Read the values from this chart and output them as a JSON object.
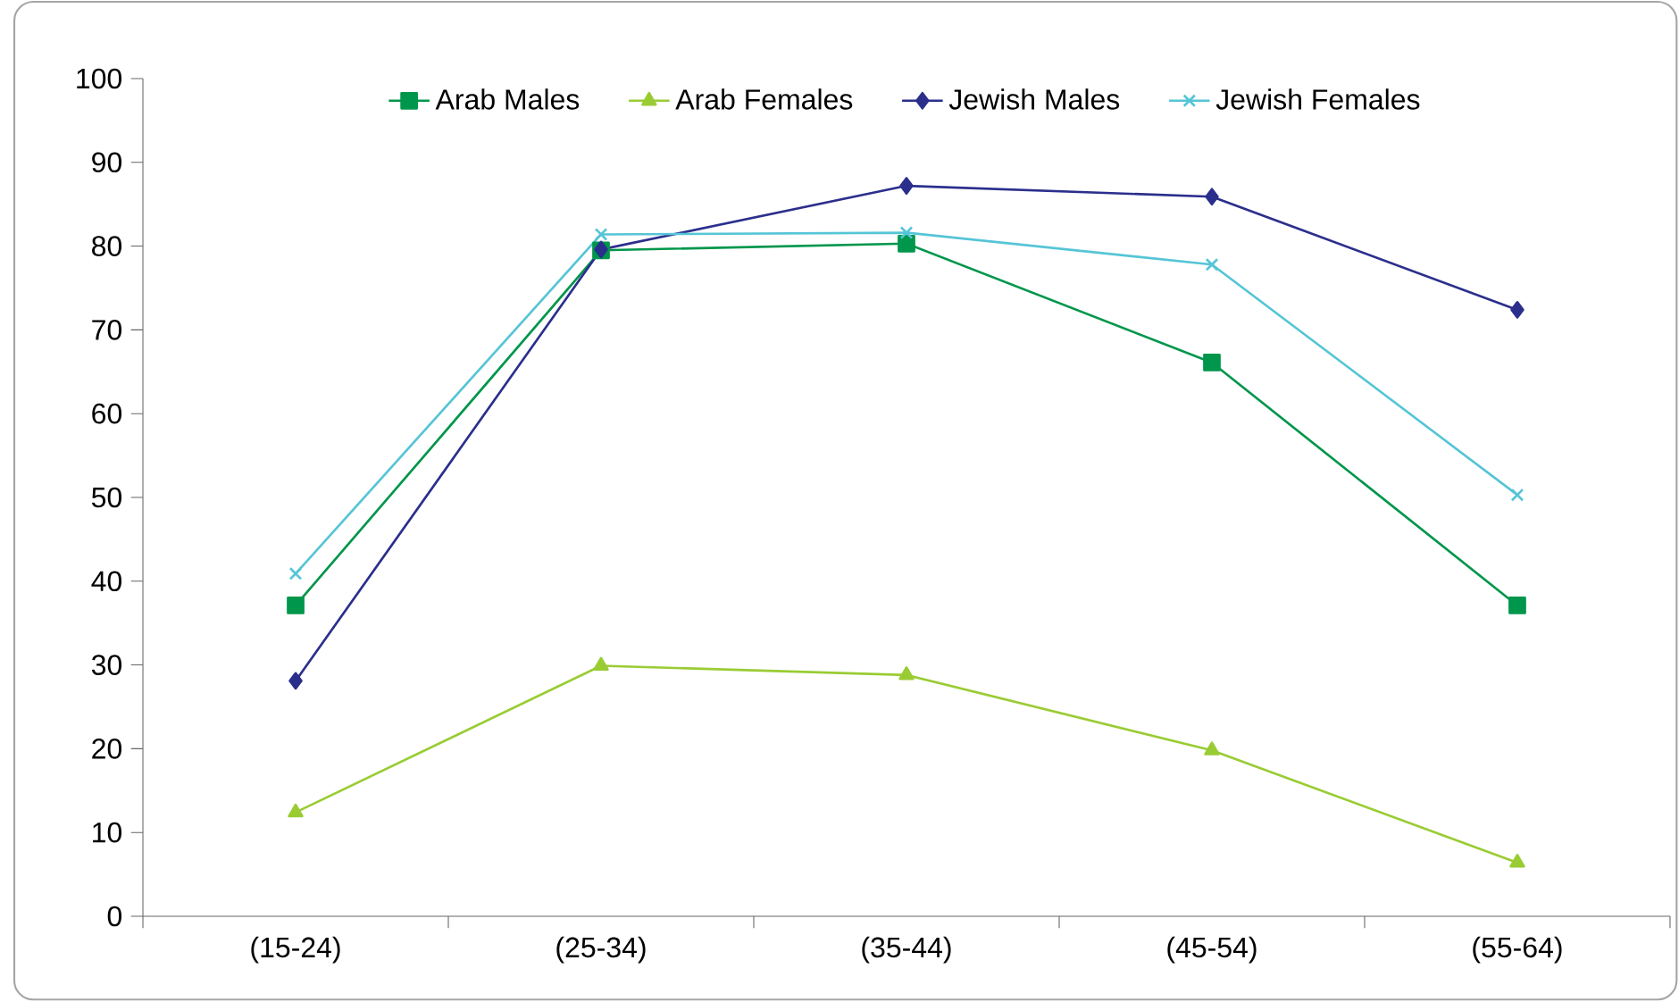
{
  "chart_data": {
    "type": "line",
    "categories": [
      "(15-24)",
      "(25-34)",
      "(35-44)",
      "(45-54)",
      "(55-64)"
    ],
    "series": [
      {
        "name": "Arab Males",
        "color": "#00964b",
        "marker": "square",
        "values": [
          37.1,
          79.5,
          80.3,
          66.1,
          37.1
        ]
      },
      {
        "name": "Arab Females",
        "color": "#99cc33",
        "marker": "triangle",
        "values": [
          12.4,
          29.9,
          28.8,
          19.8,
          6.4
        ]
      },
      {
        "name": "Jewish Males",
        "color": "#2b2f8c",
        "marker": "diamond",
        "values": [
          28.1,
          79.6,
          87.2,
          85.9,
          72.4
        ]
      },
      {
        "name": "Jewish Females",
        "color": "#55c5d6",
        "marker": "cross",
        "values": [
          40.9,
          81.4,
          81.6,
          77.8,
          50.3
        ]
      }
    ],
    "ylim": [
      0,
      100
    ],
    "yticks": [
      0,
      10,
      20,
      30,
      40,
      50,
      60,
      70,
      80,
      90,
      100
    ],
    "grid": false,
    "legend": "top"
  }
}
